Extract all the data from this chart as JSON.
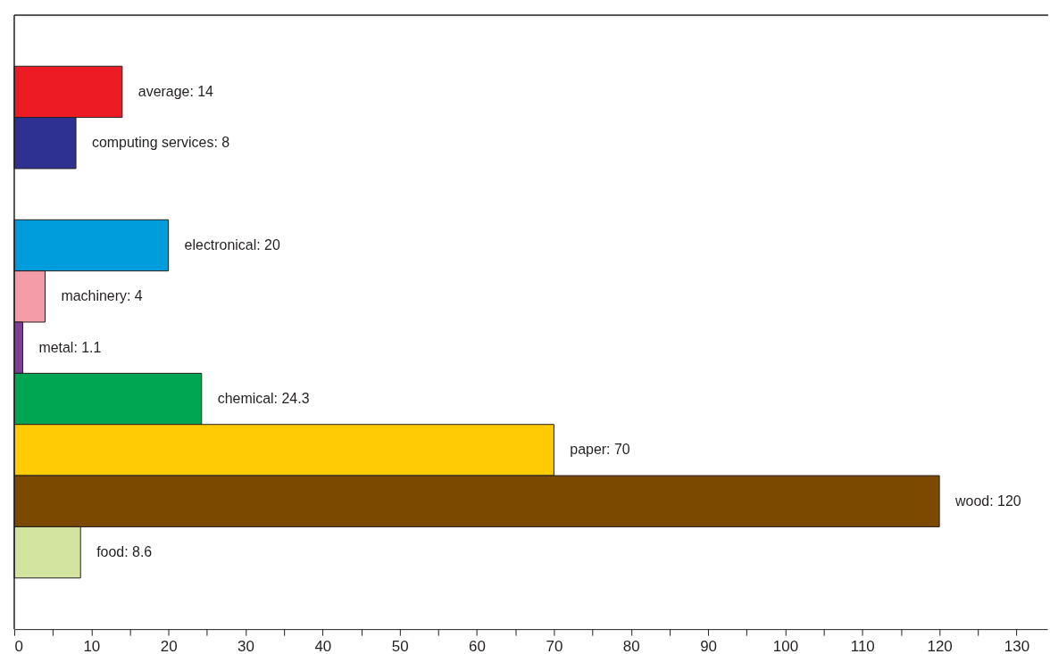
{
  "chart_data": {
    "type": "bar",
    "orientation": "horizontal",
    "categories": [
      null,
      null,
      null,
      null,
      null,
      null,
      null,
      null,
      null,
      null,
      null,
      null
    ],
    "values": [
      null,
      14,
      8,
      null,
      20,
      4,
      1.1,
      24.3,
      70,
      120,
      8.6,
      null
    ],
    "colors": [
      null,
      "#ed1c24",
      "#2e3192",
      null,
      "#009ddc",
      "#f49ca8",
      "#7f3f98",
      "#00a651",
      "#ffcb05",
      "#7b4a00",
      "#d3e4a0",
      null
    ],
    "value_labels": [
      null,
      "average: 14",
      "computing services: 8",
      null,
      "electronical: 20",
      "machinery: 4",
      "metal: 1.1",
      "chemical: 24.3",
      "paper: 70",
      "wood: 120",
      "food: 8.6",
      null
    ],
    "xlim": [
      0,
      134
    ],
    "xticks": [
      0,
      {
        "value": 5,
        "label": null
      },
      10,
      {
        "value": 15,
        "label": null
      },
      20,
      {
        "value": 25,
        "label": null
      },
      30,
      {
        "value": 35,
        "label": null
      },
      40,
      {
        "value": 45,
        "label": null
      },
      50,
      {
        "value": 55,
        "label": null
      },
      60,
      {
        "value": 65,
        "label": null
      },
      70,
      {
        "value": 75,
        "label": null
      },
      80,
      {
        "value": 85,
        "label": null
      },
      90,
      {
        "value": 95,
        "label": null
      },
      100,
      {
        "value": 105,
        "label": null
      },
      110,
      {
        "value": 115,
        "label": null
      },
      120,
      {
        "value": 125,
        "label": null
      },
      130
    ],
    "tick_labels": "x",
    "grid": false
  }
}
